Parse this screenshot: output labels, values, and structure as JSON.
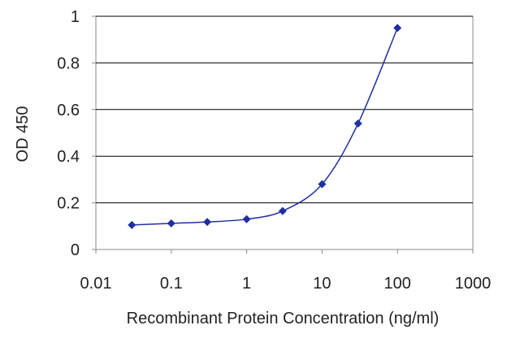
{
  "chart_data": {
    "type": "line",
    "title": "",
    "xlabel": "Recombinant Protein Concentration (ng/ml)",
    "ylabel": "OD 450",
    "x_scale": "log",
    "xlim": [
      0.01,
      1000
    ],
    "ylim": [
      0,
      1
    ],
    "x_ticks": [
      "0.01",
      "0.1",
      "1",
      "10",
      "100",
      "1000"
    ],
    "y_ticks": [
      "0",
      "0.2",
      "0.4",
      "0.6",
      "0.8",
      "1"
    ],
    "grid": "horizontal",
    "series": [
      {
        "x": [
          0.03,
          0.1,
          0.3,
          1,
          3,
          10,
          30,
          100
        ],
        "y": [
          0.105,
          0.112,
          0.118,
          0.13,
          0.165,
          0.28,
          0.54,
          0.95
        ]
      }
    ],
    "colors": {
      "series": "#1f2fa0",
      "grid": "#000000",
      "axis": "#888888"
    }
  }
}
